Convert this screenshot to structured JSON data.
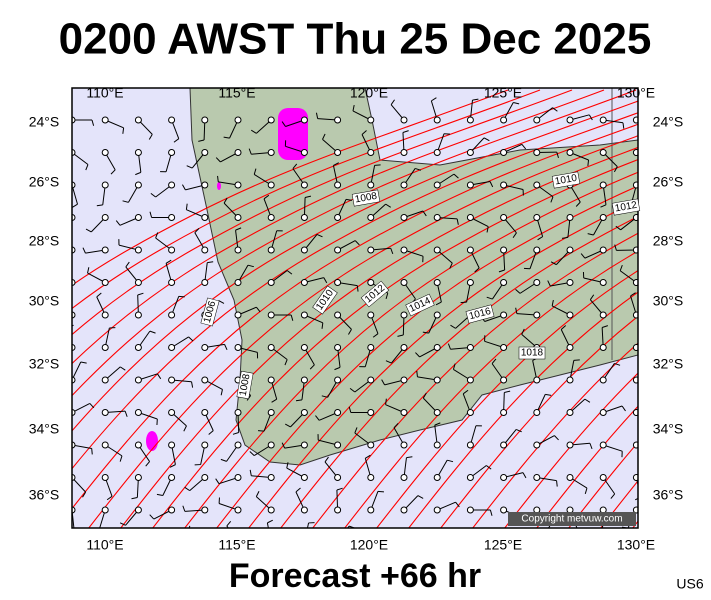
{
  "header": {
    "title": "0200 AWST Thu 25 Dec 2025"
  },
  "footer": {
    "forecast": "Forecast +66 hr",
    "code": "US6"
  },
  "map": {
    "lon_labels": [
      "110°E",
      "115°E",
      "120°E",
      "125°E",
      "130°E"
    ],
    "lat_labels": [
      "24°S",
      "26°S",
      "28°S",
      "30°S",
      "32°S",
      "34°S",
      "36°S"
    ],
    "isobar_labels": [
      "1008",
      "1010",
      "1012",
      "1006",
      "1010",
      "1012",
      "1014",
      "1016",
      "1018",
      "1008"
    ],
    "copyright": "Copyright metvuw.com"
  }
}
